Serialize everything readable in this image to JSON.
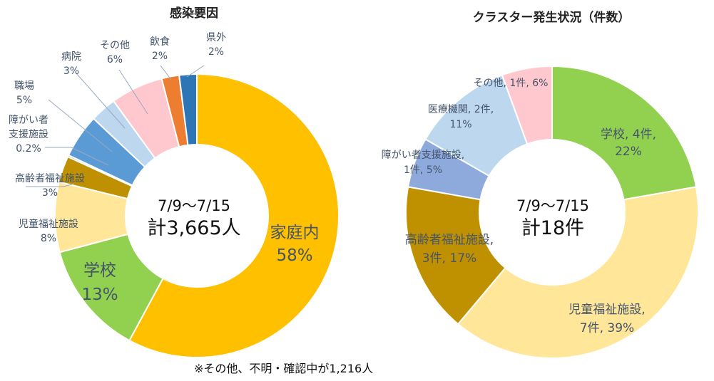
{
  "note": "※その他、不明・確認中が1,216人",
  "chart_data": [
    {
      "type": "pie",
      "title": "感染要因",
      "center_line1": "7/9～7/15",
      "center_line2": "計3,665人",
      "slices": [
        {
          "name": "家庭内",
          "pct_label": "58%",
          "value": 58,
          "color": "#ffc000"
        },
        {
          "name": "学校",
          "pct_label": "13%",
          "value": 13,
          "color": "#92d050"
        },
        {
          "name": "児童福祉施設",
          "pct_label": "8%",
          "value": 8,
          "color": "#ffe699"
        },
        {
          "name": "高齢者福祉施設",
          "pct_label": "3%",
          "value": 3,
          "color": "#bf9000"
        },
        {
          "name": "障がい者支援施設",
          "pct_label": "0.2%",
          "value": 0.2,
          "color": "#8ea9db"
        },
        {
          "name": "職場",
          "pct_label": "5%",
          "value": 5,
          "color": "#5b9bd5"
        },
        {
          "name": "病院",
          "pct_label": "3%",
          "value": 3,
          "color": "#bdd7ee"
        },
        {
          "name": "その他",
          "pct_label": "6%",
          "value": 6,
          "color": "#ffc7ce"
        },
        {
          "name": "飲食",
          "pct_label": "2%",
          "value": 2,
          "color": "#ed7d31"
        },
        {
          "name": "県外",
          "pct_label": "2%",
          "value": 2,
          "color": "#2e75b6"
        }
      ]
    },
    {
      "type": "pie",
      "title": "クラスター発生状況（件数）",
      "center_line1": "7/9～7/15",
      "center_line2": "計18件",
      "slices": [
        {
          "name": "学校",
          "count_label": "4件",
          "pct_label": "22%",
          "value": 4,
          "color": "#92d050"
        },
        {
          "name": "児童福祉施設",
          "count_label": "7件",
          "pct_label": "39%",
          "value": 7,
          "color": "#ffe699"
        },
        {
          "name": "高齢者福祉施設",
          "count_label": "3件",
          "pct_label": "17%",
          "value": 3,
          "color": "#bf9000"
        },
        {
          "name": "障がい者支援施設",
          "count_label": "1件",
          "pct_label": "5%",
          "value": 1,
          "color": "#8ea9db"
        },
        {
          "name": "医療機関",
          "count_label": "2件",
          "pct_label": "11%",
          "value": 2,
          "color": "#bdd7ee"
        },
        {
          "name": "その他",
          "count_label": "1件",
          "pct_label": "6%",
          "value": 1,
          "color": "#ffc7ce"
        }
      ]
    }
  ]
}
